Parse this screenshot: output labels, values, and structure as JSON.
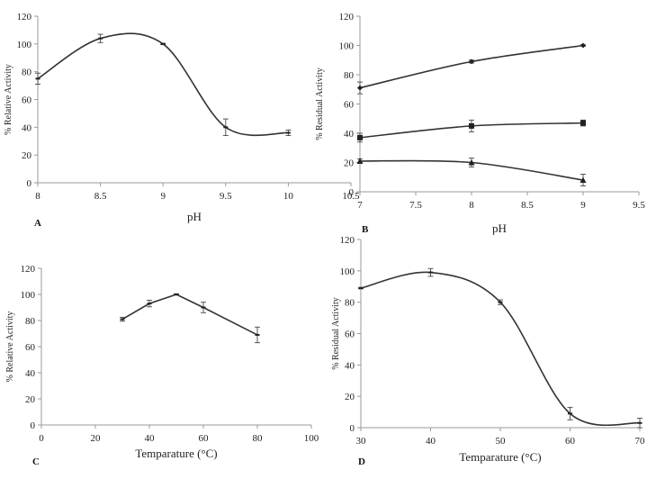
{
  "chart_data": [
    {
      "id": "A",
      "type": "line",
      "panel_label": "A",
      "xlabel": "pH",
      "ylabel": "% Relative Activity",
      "xlim": [
        8,
        10.5
      ],
      "ylim": [
        0,
        120
      ],
      "xticks": [
        8,
        8.5,
        9,
        9.5,
        10,
        10.5
      ],
      "xtick_labels": [
        "8",
        "8.5",
        "9",
        "9.5",
        "10",
        "10.5"
      ],
      "yticks": [
        0,
        20,
        40,
        60,
        80,
        100,
        120
      ],
      "ytick_labels": [
        "0",
        "20",
        "40",
        "60",
        "80",
        "100",
        "120"
      ],
      "smooth": true,
      "series": [
        {
          "marker": "dash",
          "x": [
            8,
            8.5,
            9,
            9.5,
            10
          ],
          "y": [
            75,
            104,
            100,
            40,
            36
          ],
          "err": [
            4,
            3,
            0.5,
            6,
            2
          ]
        }
      ]
    },
    {
      "id": "B",
      "type": "line",
      "panel_label": "B",
      "xlabel": "pH",
      "ylabel": "% Residual Activity",
      "xlim": [
        7,
        9.5
      ],
      "ylim": [
        0,
        120
      ],
      "xticks": [
        7,
        7.5,
        8,
        8.5,
        9,
        9.5
      ],
      "xtick_labels": [
        "7",
        "7.5",
        "8",
        "8.5",
        "9",
        "9.5"
      ],
      "yticks": [
        0,
        20,
        40,
        60,
        80,
        100,
        120
      ],
      "ytick_labels": [
        "0",
        "20",
        "40",
        "60",
        "80",
        "100",
        "120"
      ],
      "smooth": true,
      "series": [
        {
          "marker": "diamond",
          "x": [
            7,
            8,
            9
          ],
          "y": [
            71,
            89,
            100
          ],
          "err": [
            4,
            1,
            0.5
          ]
        },
        {
          "marker": "square",
          "x": [
            7,
            8,
            9
          ],
          "y": [
            37,
            45,
            47
          ],
          "err": [
            3,
            4,
            2
          ]
        },
        {
          "marker": "triangle",
          "x": [
            7,
            8,
            9
          ],
          "y": [
            21,
            20,
            8
          ],
          "err": [
            1.5,
            3,
            4
          ]
        }
      ]
    },
    {
      "id": "C",
      "type": "line",
      "panel_label": "C",
      "xlabel": "Temparature (°C)",
      "ylabel": "% Relative Activity",
      "xlim": [
        0,
        100
      ],
      "ylim": [
        0,
        120
      ],
      "xticks": [
        0,
        20,
        40,
        60,
        80,
        100
      ],
      "xtick_labels": [
        "0",
        "20",
        "40",
        "60",
        "80",
        "100"
      ],
      "yticks": [
        0,
        20,
        40,
        60,
        80,
        100,
        120
      ],
      "ytick_labels": [
        "0",
        "20",
        "40",
        "60",
        "80",
        "100",
        "120"
      ],
      "smooth": false,
      "series": [
        {
          "marker": "dash",
          "x": [
            30,
            40,
            50,
            60,
            80
          ],
          "y": [
            81,
            93,
            100,
            90,
            69
          ],
          "err": [
            1.5,
            2.5,
            0.5,
            4,
            6
          ]
        }
      ]
    },
    {
      "id": "D",
      "type": "line",
      "panel_label": "D",
      "xlabel": "Temparature (°C)",
      "ylabel": "% Residual Activity",
      "xlim": [
        30,
        70
      ],
      "ylim": [
        0,
        120
      ],
      "xticks": [
        30,
        40,
        50,
        60,
        70
      ],
      "xtick_labels": [
        "30",
        "40",
        "50",
        "60",
        "70"
      ],
      "yticks": [
        0,
        20,
        40,
        60,
        80,
        100,
        120
      ],
      "ytick_labels": [
        "0",
        "20",
        "40",
        "60",
        "80",
        "100",
        "120"
      ],
      "smooth": true,
      "series": [
        {
          "marker": "dash",
          "x": [
            30,
            40,
            50,
            60,
            70
          ],
          "y": [
            89,
            99,
            80,
            9,
            3
          ],
          "err": [
            0.5,
            2.5,
            1.5,
            4,
            3
          ]
        }
      ]
    }
  ]
}
